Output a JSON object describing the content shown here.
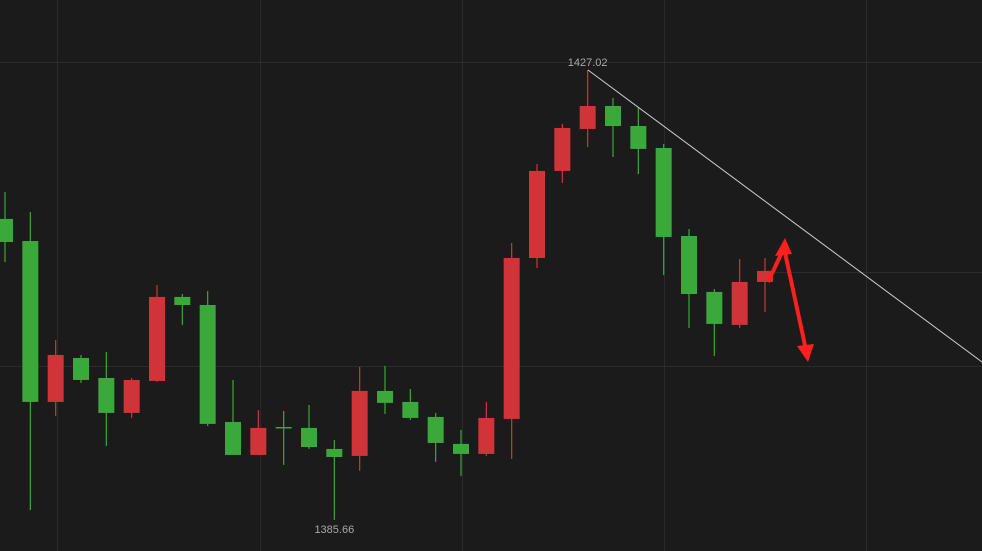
{
  "chart_data": {
    "type": "candlestick",
    "open": [
      1413.33,
      1411.3,
      1396.51,
      1400.55,
      1398.71,
      1395.5,
      1398.44,
      1406.16,
      1405.42,
      1394.67,
      1391.64,
      1394.21,
      1394.12,
      1392.19,
      1391.55,
      1397.52,
      1396.51,
      1395.13,
      1392.65,
      1391.73,
      1394.95,
      1409.74,
      1417.74,
      1421.6,
      1423.71,
      1421.87,
      1419.85,
      1411.76,
      1406.62,
      1403.59,
      1407.54
    ],
    "high": [
      1415.81,
      1413.97,
      1402.21,
      1400.83,
      1401.1,
      1398.71,
      1407.26,
      1406.43,
      1406.71,
      1398.53,
      1395.77,
      1395.68,
      1396.23,
      1393.02,
      1399.73,
      1399.82,
      1397.7,
      1395.5,
      1393.94,
      1396.51,
      1411.12,
      1418.38,
      1422.06,
      1427.02,
      1424.45,
      1423.53,
      1420.22,
      1412.41,
      1406.89,
      1409.65,
      1409.74
    ],
    "low": [
      1409.37,
      1386.58,
      1395.22,
      1398.26,
      1392.47,
      1395.04,
      1398.35,
      1403.59,
      1394.3,
      1391.64,
      1391.64,
      1390.72,
      1392.19,
      1385.66,
      1390.17,
      1395.41,
      1394.85,
      1391.0,
      1389.71,
      1391.55,
      1391.27,
      1408.82,
      1416.64,
      1419.94,
      1419.02,
      1417.46,
      1408.18,
      1403.31,
      1400.74,
      1403.31,
      1404.78
    ],
    "close": [
      1411.21,
      1396.51,
      1400.83,
      1398.53,
      1395.5,
      1398.53,
      1406.16,
      1405.42,
      1394.49,
      1391.64,
      1394.12,
      1394.12,
      1392.37,
      1391.45,
      1397.52,
      1396.42,
      1395.04,
      1392.74,
      1391.73,
      1395.04,
      1409.74,
      1417.74,
      1421.69,
      1423.71,
      1421.87,
      1419.76,
      1411.67,
      1406.43,
      1403.68,
      1407.54,
      1408.55
    ],
    "up_color": "#d13438",
    "down_color": "#3aa83a",
    "ylim": [
      1382.81,
      1433.45
    ]
  }
}
